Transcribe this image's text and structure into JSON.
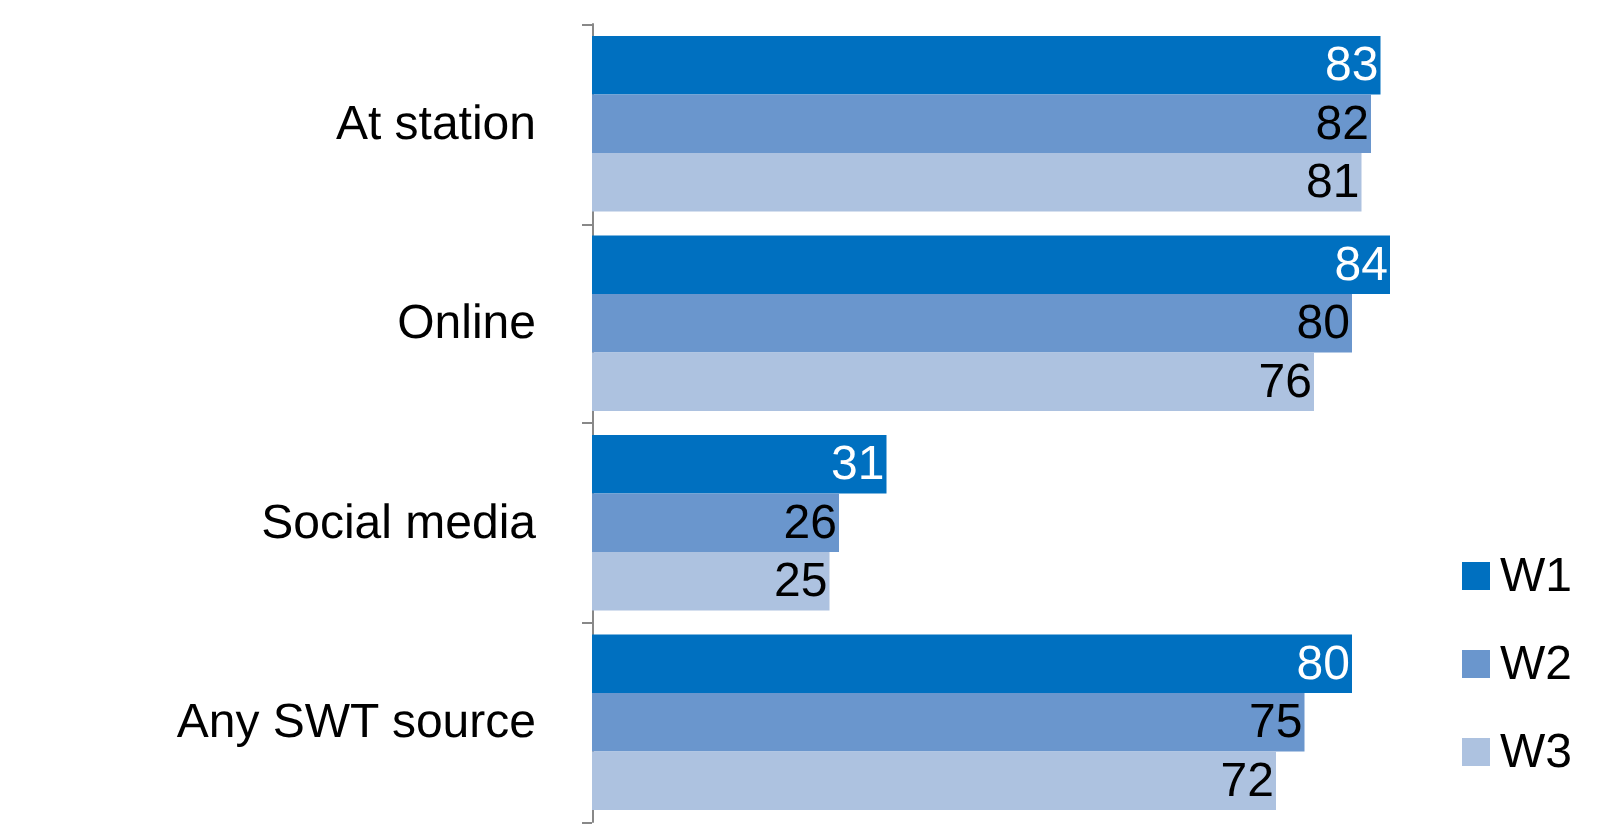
{
  "chart_data": {
    "type": "bar",
    "orientation": "horizontal",
    "categories": [
      "At station",
      "Online",
      "Social media",
      "Any SWT source"
    ],
    "series": [
      {
        "name": "W1",
        "color": "#0070c0",
        "values": [
          83,
          84,
          31,
          80
        ]
      },
      {
        "name": "W2",
        "color": "#6a96cd",
        "values": [
          82,
          80,
          26,
          75
        ]
      },
      {
        "name": "W3",
        "color": "#adc2e0",
        "values": [
          81,
          76,
          25,
          72
        ]
      }
    ],
    "data_labels": true,
    "legend": "bottom right"
  }
}
